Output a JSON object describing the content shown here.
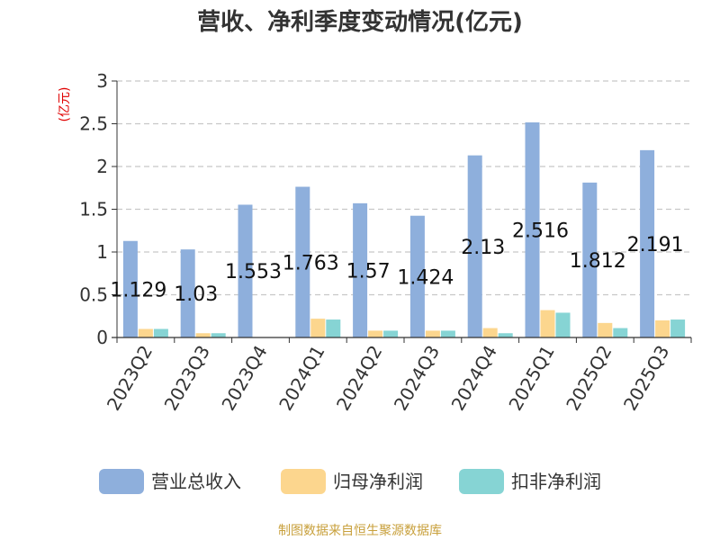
{
  "chart_data": {
    "type": "bar",
    "title": "营收、净利季度变动情况(亿元)",
    "ylabel": "(亿元)",
    "ylim": [
      0,
      3
    ],
    "yticks": [
      "0",
      "0.5",
      "1",
      "1.5",
      "2",
      "2.5",
      "3"
    ],
    "grid": true,
    "legend_position": "bottom",
    "categories": [
      "2023Q2",
      "2023Q3",
      "2023Q4",
      "2024Q1",
      "2024Q2",
      "2024Q3",
      "2024Q4",
      "2025Q1",
      "2025Q2",
      "2025Q3"
    ],
    "series": [
      {
        "name": "营业总收入",
        "color": "#8eafdc",
        "values": [
          1.129,
          1.03,
          1.553,
          1.763,
          1.57,
          1.424,
          2.13,
          2.516,
          1.812,
          2.191
        ]
      },
      {
        "name": "归母净利润",
        "color": "#fcd68e",
        "values": [
          0.1,
          0.05,
          0.0,
          0.22,
          0.08,
          0.08,
          0.11,
          0.32,
          0.17,
          0.2
        ]
      },
      {
        "name": "扣非净利润",
        "color": "#86d4d4",
        "values": [
          0.1,
          0.05,
          0.0,
          0.21,
          0.08,
          0.08,
          0.05,
          0.29,
          0.11,
          0.21
        ]
      }
    ],
    "data_labels": [
      "1.129",
      "1.03",
      "1.553",
      "1.763",
      "1.57",
      "1.424",
      "2.13",
      "2.516",
      "1.812",
      "2.191"
    ],
    "source": "制图数据来自恒生聚源数据库"
  }
}
